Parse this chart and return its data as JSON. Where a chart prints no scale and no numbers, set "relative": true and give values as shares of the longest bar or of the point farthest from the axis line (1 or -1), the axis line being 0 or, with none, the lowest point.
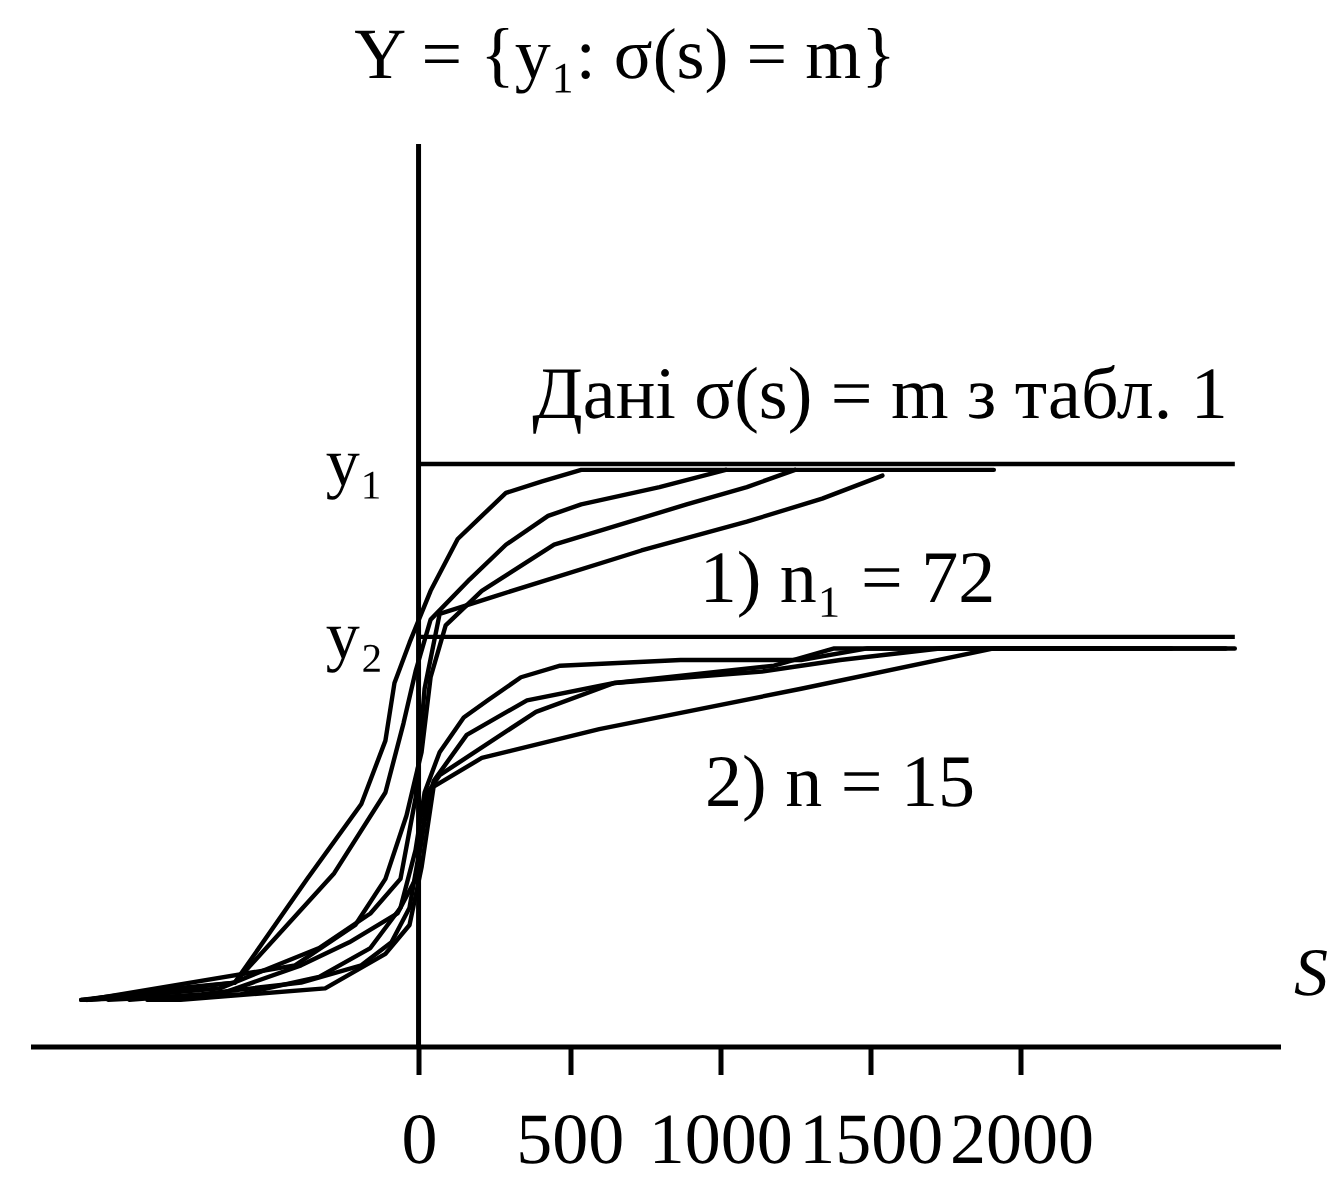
{
  "chart_data": {
    "type": "line",
    "title": "Y = {y₁: σ(s) = m}",
    "xlabel": "S",
    "relative": true,
    "grid": false,
    "xlim": [
      -1290,
      2860
    ],
    "xticks": [
      0,
      500,
      1000,
      1500,
      2000
    ],
    "ref_lines": [
      {
        "axis": "x",
        "value": 0
      },
      {
        "axis": "y",
        "value": 1.01,
        "label": "y₁"
      },
      {
        "axis": "y",
        "value": 0.71,
        "label": "y₂"
      }
    ],
    "annotations": [
      "Дані σ(s) = m з табл. 1",
      "1) n₁ = 72",
      "2) n = 15"
    ],
    "series": [
      {
        "color": "#000000",
        "x": [
          -1120,
          -810,
          -610,
          -370,
          -190,
          -110,
          -80,
          -30,
          40,
          130,
          210,
          290,
          410,
          540,
          1000,
          1910
        ],
        "values": [
          0.08,
          0.1,
          0.11,
          0.29,
          0.42,
          0.53,
          0.63,
          0.7,
          0.79,
          0.88,
          0.92,
          0.96,
          0.98,
          1,
          1,
          1
        ]
      },
      {
        "color": "#000000",
        "x": [
          -1110,
          -610,
          -280,
          -110,
          -50,
          -10,
          40,
          170,
          290,
          430,
          540,
          800,
          1020
        ],
        "values": [
          0.08,
          0.11,
          0.3,
          0.44,
          0.56,
          0.65,
          0.74,
          0.81,
          0.87,
          0.92,
          0.94,
          0.97,
          1
        ]
      },
      {
        "color": "#000000",
        "x": [
          -1100,
          -410,
          -210,
          -110,
          -40,
          10,
          40,
          90,
          210,
          450,
          890,
          1090,
          1250
        ],
        "values": [
          0.08,
          0.14,
          0.21,
          0.29,
          0.4,
          0.51,
          0.64,
          0.73,
          0.79,
          0.87,
          0.94,
          0.97,
          1
        ]
      },
      {
        "color": "#000000",
        "x": [
          -1090,
          -660,
          -330,
          -160,
          -60,
          -10,
          20,
          70,
          250,
          740,
          1090,
          1340,
          1540
        ],
        "values": [
          0.08,
          0.1,
          0.17,
          0.23,
          0.29,
          0.43,
          0.62,
          0.75,
          0.78,
          0.86,
          0.91,
          0.95,
          0.99
        ]
      },
      {
        "color": "#000000",
        "x": [
          -1120,
          -590,
          -330,
          -160,
          -60,
          -10,
          20,
          70,
          150,
          230,
          340,
          470,
          870,
          1270,
          1490,
          2710
        ],
        "values": [
          0.08,
          0.09,
          0.12,
          0.17,
          0.24,
          0.34,
          0.44,
          0.51,
          0.57,
          0.6,
          0.64,
          0.66,
          0.67,
          0.67,
          0.69,
          0.69
        ]
      },
      {
        "color": "#000000",
        "x": [
          -1030,
          -660,
          -390,
          -230,
          -70,
          -10,
          20,
          50,
          160,
          360,
          650,
          1180,
          1380,
          2500
        ],
        "values": [
          0.08,
          0.09,
          0.14,
          0.18,
          0.23,
          0.29,
          0.39,
          0.46,
          0.54,
          0.6,
          0.63,
          0.66,
          0.69,
          0.69
        ]
      },
      {
        "color": "#000000",
        "x": [
          -960,
          -720,
          -390,
          -190,
          -90,
          -30,
          10,
          30,
          70,
          390,
          650,
          1140,
          1400,
          1730,
          2300
        ],
        "values": [
          0.08,
          0.09,
          0.11,
          0.14,
          0.18,
          0.24,
          0.36,
          0.44,
          0.47,
          0.58,
          0.63,
          0.65,
          0.67,
          0.69,
          0.69
        ]
      },
      {
        "color": "#000000",
        "x": [
          -900,
          -790,
          -310,
          -110,
          -30,
          10,
          30,
          50,
          210,
          600,
          1270,
          1910,
          2680
        ],
        "values": [
          0.08,
          0.08,
          0.1,
          0.16,
          0.21,
          0.31,
          0.38,
          0.45,
          0.5,
          0.55,
          0.62,
          0.69,
          0.69
        ]
      }
    ]
  }
}
